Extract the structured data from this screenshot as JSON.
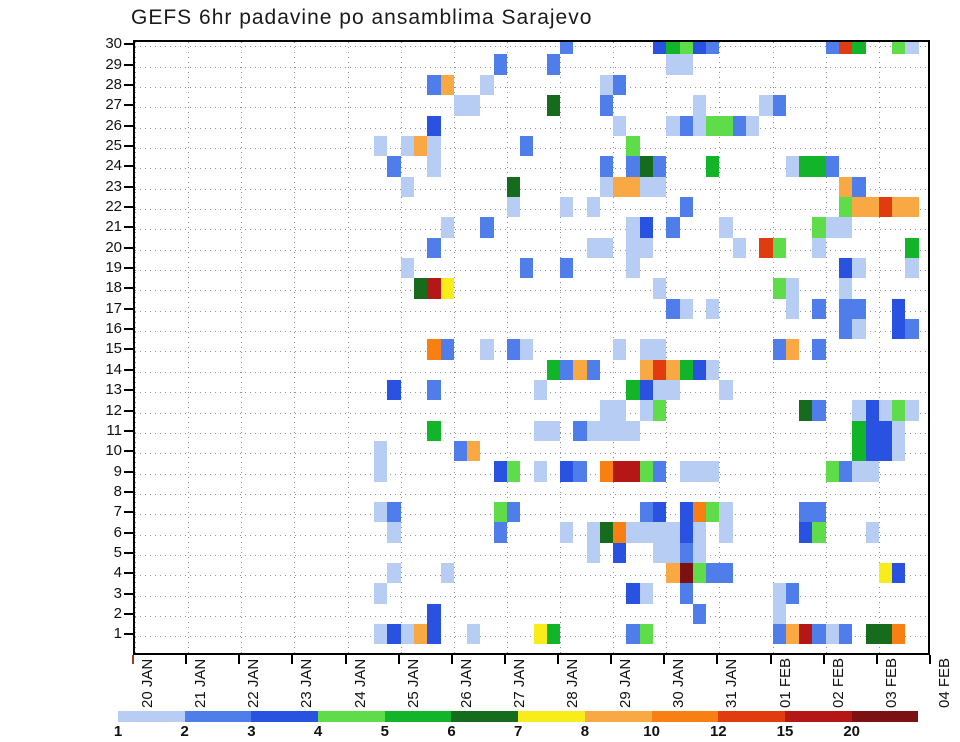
{
  "title": "GEFS 6hr padavine po ansamblima Sarajevo",
  "chart_data": {
    "type": "heatmap",
    "title": "GEFS 6hr padavine po ansamblima Sarajevo",
    "xlabel": "",
    "ylabel": "",
    "x_tick_labels": [
      "20 JAN",
      "21 JAN",
      "22 JAN",
      "23 JAN",
      "24 JAN",
      "25 JAN",
      "26 JAN",
      "27 JAN",
      "28 JAN",
      "29 JAN",
      "30 JAN",
      "31 JAN",
      "01 FEB",
      "02 FEB",
      "03 FEB",
      "04 FEB"
    ],
    "y_tick_labels": [
      "1",
      "2",
      "3",
      "4",
      "5",
      "6",
      "7",
      "8",
      "9",
      "10",
      "11",
      "12",
      "13",
      "14",
      "15",
      "16",
      "17",
      "18",
      "19",
      "20",
      "21",
      "22",
      "23",
      "24",
      "25",
      "26",
      "27",
      "28",
      "29",
      "30"
    ],
    "ylim": [
      1,
      30
    ],
    "cols_per_day": 4,
    "n_cols": 60,
    "grid": true,
    "legend_position": "bottom",
    "legend_labels": [
      "1",
      "2",
      "3",
      "4",
      "5",
      "6",
      "7",
      "8",
      "10",
      "12",
      "15",
      "20"
    ],
    "palette": [
      "#b7cdf3",
      "#4f7de9",
      "#2a52e0",
      "#5fdc4a",
      "#12b42a",
      "#176b1d",
      "#f9ec1b",
      "#f9a943",
      "#f87f12",
      "#e03c10",
      "#b51717",
      "#7c1113"
    ],
    "cells": [
      [
        30,
        32,
        2
      ],
      [
        30,
        39,
        3
      ],
      [
        30,
        40,
        5
      ],
      [
        30,
        41,
        4
      ],
      [
        30,
        42,
        3
      ],
      [
        30,
        43,
        2
      ],
      [
        30,
        52,
        2
      ],
      [
        30,
        53,
        10
      ],
      [
        30,
        54,
        5
      ],
      [
        30,
        57,
        4
      ],
      [
        30,
        58,
        1
      ],
      [
        29,
        27,
        2
      ],
      [
        29,
        31,
        2
      ],
      [
        29,
        40,
        1
      ],
      [
        29,
        41,
        1
      ],
      [
        28,
        22,
        2
      ],
      [
        28,
        23,
        8
      ],
      [
        28,
        26,
        1
      ],
      [
        28,
        35,
        1
      ],
      [
        28,
        36,
        2
      ],
      [
        27,
        24,
        1
      ],
      [
        27,
        25,
        1
      ],
      [
        27,
        31,
        6
      ],
      [
        27,
        35,
        2
      ],
      [
        27,
        42,
        1
      ],
      [
        27,
        47,
        1
      ],
      [
        27,
        48,
        2
      ],
      [
        26,
        22,
        3
      ],
      [
        26,
        36,
        1
      ],
      [
        26,
        40,
        1
      ],
      [
        26,
        41,
        2
      ],
      [
        26,
        42,
        1
      ],
      [
        26,
        43,
        4
      ],
      [
        26,
        44,
        4
      ],
      [
        26,
        45,
        2
      ],
      [
        26,
        46,
        1
      ],
      [
        25,
        18,
        1
      ],
      [
        25,
        20,
        1
      ],
      [
        25,
        21,
        8
      ],
      [
        25,
        22,
        1
      ],
      [
        25,
        29,
        2
      ],
      [
        25,
        37,
        4
      ],
      [
        24,
        19,
        2
      ],
      [
        24,
        22,
        1
      ],
      [
        24,
        35,
        2
      ],
      [
        24,
        37,
        2
      ],
      [
        24,
        38,
        6
      ],
      [
        24,
        39,
        2
      ],
      [
        24,
        43,
        5
      ],
      [
        24,
        49,
        1
      ],
      [
        24,
        50,
        5
      ],
      [
        24,
        51,
        5
      ],
      [
        24,
        52,
        2
      ],
      [
        23,
        20,
        1
      ],
      [
        23,
        28,
        6
      ],
      [
        23,
        35,
        1
      ],
      [
        23,
        36,
        8
      ],
      [
        23,
        37,
        8
      ],
      [
        23,
        38,
        1
      ],
      [
        23,
        39,
        1
      ],
      [
        23,
        53,
        8
      ],
      [
        23,
        54,
        2
      ],
      [
        22,
        28,
        1
      ],
      [
        22,
        32,
        1
      ],
      [
        22,
        34,
        1
      ],
      [
        22,
        41,
        2
      ],
      [
        22,
        53,
        4
      ],
      [
        22,
        54,
        8
      ],
      [
        22,
        55,
        8
      ],
      [
        22,
        56,
        10
      ],
      [
        22,
        57,
        8
      ],
      [
        22,
        58,
        8
      ],
      [
        21,
        23,
        1
      ],
      [
        21,
        26,
        2
      ],
      [
        21,
        37,
        1
      ],
      [
        21,
        38,
        3
      ],
      [
        21,
        40,
        2
      ],
      [
        21,
        44,
        1
      ],
      [
        21,
        51,
        4
      ],
      [
        21,
        52,
        1
      ],
      [
        21,
        53,
        1
      ],
      [
        20,
        22,
        2
      ],
      [
        20,
        34,
        1
      ],
      [
        20,
        35,
        1
      ],
      [
        20,
        37,
        1
      ],
      [
        20,
        38,
        1
      ],
      [
        20,
        45,
        1
      ],
      [
        20,
        47,
        10
      ],
      [
        20,
        48,
        4
      ],
      [
        20,
        51,
        1
      ],
      [
        20,
        58,
        5
      ],
      [
        19,
        20,
        1
      ],
      [
        19,
        29,
        2
      ],
      [
        19,
        32,
        2
      ],
      [
        19,
        37,
        1
      ],
      [
        19,
        53,
        3
      ],
      [
        19,
        54,
        1
      ],
      [
        19,
        58,
        1
      ],
      [
        18,
        21,
        6
      ],
      [
        18,
        22,
        11
      ],
      [
        18,
        23,
        7
      ],
      [
        18,
        39,
        1
      ],
      [
        18,
        48,
        4
      ],
      [
        18,
        49,
        1
      ],
      [
        18,
        53,
        1
      ],
      [
        17,
        40,
        2
      ],
      [
        17,
        41,
        1
      ],
      [
        17,
        43,
        1
      ],
      [
        17,
        49,
        1
      ],
      [
        17,
        51,
        2
      ],
      [
        17,
        53,
        2
      ],
      [
        17,
        54,
        2
      ],
      [
        17,
        57,
        3
      ],
      [
        16,
        53,
        2
      ],
      [
        16,
        54,
        1
      ],
      [
        16,
        57,
        3
      ],
      [
        16,
        58,
        2
      ],
      [
        15,
        22,
        9
      ],
      [
        15,
        23,
        2
      ],
      [
        15,
        26,
        1
      ],
      [
        15,
        28,
        2
      ],
      [
        15,
        29,
        1
      ],
      [
        15,
        36,
        1
      ],
      [
        15,
        38,
        1
      ],
      [
        15,
        39,
        1
      ],
      [
        15,
        48,
        2
      ],
      [
        15,
        49,
        8
      ],
      [
        15,
        51,
        2
      ],
      [
        14,
        31,
        5
      ],
      [
        14,
        32,
        2
      ],
      [
        14,
        33,
        8
      ],
      [
        14,
        34,
        2
      ],
      [
        14,
        38,
        8
      ],
      [
        14,
        39,
        10
      ],
      [
        14,
        40,
        8
      ],
      [
        14,
        41,
        5
      ],
      [
        14,
        42,
        3
      ],
      [
        14,
        43,
        1
      ],
      [
        13,
        19,
        3
      ],
      [
        13,
        22,
        2
      ],
      [
        13,
        30,
        1
      ],
      [
        13,
        37,
        5
      ],
      [
        13,
        38,
        3
      ],
      [
        13,
        39,
        1
      ],
      [
        13,
        40,
        1
      ],
      [
        13,
        44,
        1
      ],
      [
        12,
        35,
        1
      ],
      [
        12,
        36,
        1
      ],
      [
        12,
        38,
        1
      ],
      [
        12,
        39,
        4
      ],
      [
        12,
        50,
        6
      ],
      [
        12,
        51,
        2
      ],
      [
        12,
        54,
        1
      ],
      [
        12,
        55,
        3
      ],
      [
        12,
        56,
        1
      ],
      [
        12,
        57,
        4
      ],
      [
        12,
        58,
        1
      ],
      [
        11,
        22,
        5
      ],
      [
        11,
        30,
        1
      ],
      [
        11,
        31,
        1
      ],
      [
        11,
        33,
        2
      ],
      [
        11,
        34,
        1
      ],
      [
        11,
        35,
        1
      ],
      [
        11,
        36,
        1
      ],
      [
        11,
        37,
        1
      ],
      [
        11,
        54,
        5
      ],
      [
        11,
        55,
        3
      ],
      [
        11,
        56,
        3
      ],
      [
        11,
        57,
        1
      ],
      [
        10,
        18,
        1
      ],
      [
        10,
        24,
        2
      ],
      [
        10,
        25,
        8
      ],
      [
        10,
        54,
        5
      ],
      [
        10,
        55,
        3
      ],
      [
        10,
        56,
        3
      ],
      [
        10,
        57,
        1
      ],
      [
        9,
        18,
        1
      ],
      [
        9,
        27,
        3
      ],
      [
        9,
        28,
        4
      ],
      [
        9,
        30,
        1
      ],
      [
        9,
        32,
        3
      ],
      [
        9,
        33,
        2
      ],
      [
        9,
        35,
        9
      ],
      [
        9,
        36,
        11
      ],
      [
        9,
        37,
        11
      ],
      [
        9,
        38,
        4
      ],
      [
        9,
        39,
        2
      ],
      [
        9,
        41,
        1
      ],
      [
        9,
        42,
        1
      ],
      [
        9,
        43,
        1
      ],
      [
        9,
        52,
        4
      ],
      [
        9,
        53,
        2
      ],
      [
        9,
        54,
        1
      ],
      [
        9,
        55,
        1
      ],
      [
        7,
        18,
        1
      ],
      [
        7,
        19,
        2
      ],
      [
        7,
        27,
        4
      ],
      [
        7,
        28,
        2
      ],
      [
        7,
        38,
        2
      ],
      [
        7,
        39,
        3
      ],
      [
        7,
        41,
        3
      ],
      [
        7,
        42,
        9
      ],
      [
        7,
        43,
        4
      ],
      [
        7,
        44,
        1
      ],
      [
        7,
        50,
        2
      ],
      [
        7,
        51,
        2
      ],
      [
        6,
        19,
        1
      ],
      [
        6,
        27,
        2
      ],
      [
        6,
        32,
        1
      ],
      [
        6,
        34,
        1
      ],
      [
        6,
        35,
        6
      ],
      [
        6,
        36,
        9
      ],
      [
        6,
        37,
        1
      ],
      [
        6,
        38,
        1
      ],
      [
        6,
        39,
        1
      ],
      [
        6,
        40,
        1
      ],
      [
        6,
        41,
        3
      ],
      [
        6,
        42,
        1
      ],
      [
        6,
        44,
        1
      ],
      [
        6,
        50,
        3
      ],
      [
        6,
        51,
        4
      ],
      [
        6,
        55,
        1
      ],
      [
        5,
        34,
        1
      ],
      [
        5,
        36,
        3
      ],
      [
        5,
        39,
        1
      ],
      [
        5,
        40,
        1
      ],
      [
        5,
        41,
        2
      ],
      [
        5,
        42,
        1
      ],
      [
        4,
        19,
        1
      ],
      [
        4,
        23,
        1
      ],
      [
        4,
        40,
        8
      ],
      [
        4,
        41,
        12
      ],
      [
        4,
        42,
        4
      ],
      [
        4,
        43,
        2
      ],
      [
        4,
        44,
        2
      ],
      [
        4,
        56,
        7
      ],
      [
        4,
        57,
        3
      ],
      [
        3,
        18,
        1
      ],
      [
        3,
        37,
        3
      ],
      [
        3,
        38,
        1
      ],
      [
        3,
        41,
        2
      ],
      [
        3,
        48,
        1
      ],
      [
        3,
        49,
        2
      ],
      [
        2,
        22,
        3
      ],
      [
        2,
        42,
        2
      ],
      [
        2,
        48,
        1
      ],
      [
        1,
        18,
        1
      ],
      [
        1,
        19,
        3
      ],
      [
        1,
        20,
        1
      ],
      [
        1,
        21,
        8
      ],
      [
        1,
        22,
        3
      ],
      [
        1,
        25,
        1
      ],
      [
        1,
        30,
        7
      ],
      [
        1,
        31,
        5
      ],
      [
        1,
        37,
        2
      ],
      [
        1,
        38,
        4
      ],
      [
        1,
        48,
        2
      ],
      [
        1,
        49,
        8
      ],
      [
        1,
        50,
        11
      ],
      [
        1,
        51,
        2
      ],
      [
        1,
        52,
        1
      ],
      [
        1,
        53,
        2
      ],
      [
        1,
        55,
        6
      ],
      [
        1,
        56,
        6
      ],
      [
        1,
        57,
        9
      ]
    ]
  }
}
